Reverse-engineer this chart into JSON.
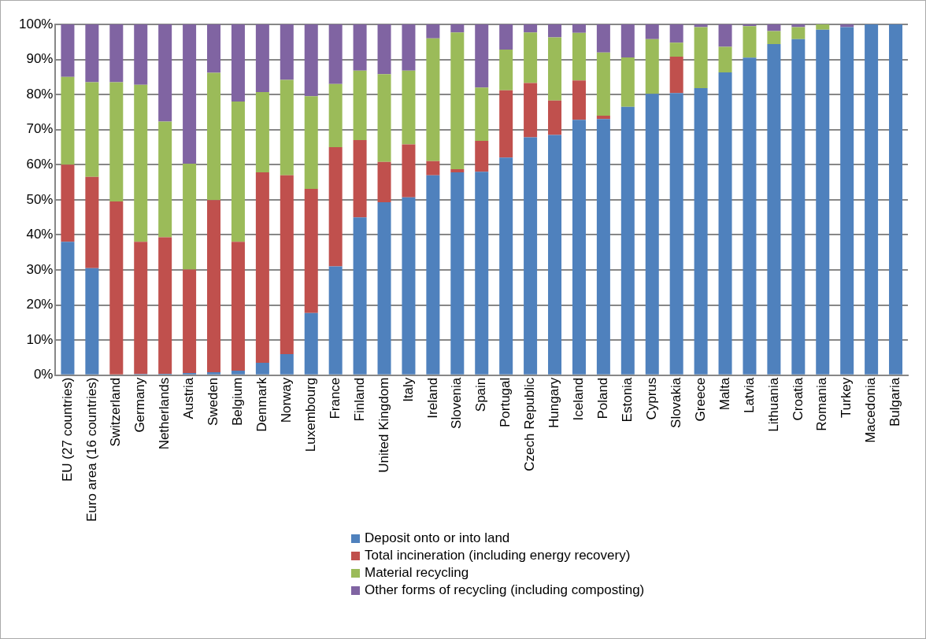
{
  "chart_data": {
    "type": "bar",
    "stacked": true,
    "grid": "y",
    "legend": "bottom",
    "categories": [
      "EU (27 countries)",
      "Euro area (16 countries)",
      "Switzerland",
      "Germany",
      "Netherlands",
      "Austria",
      "Sweden",
      "Belgium",
      "Denmark",
      "Norway",
      "Luxembourg",
      "France",
      "Finland",
      "United Kingdom",
      "Italy",
      "Ireland",
      "Slovenia",
      "Spain",
      "Portugal",
      "Czech Republic",
      "Hungary",
      "Iceland",
      "Poland",
      "Estonia",
      "Cyprus",
      "Slovakia",
      "Greece",
      "Malta",
      "Latvia",
      "Lithuania",
      "Croatia",
      "Romania",
      "Turkey",
      "Macedonia",
      "Bulgaria"
    ],
    "ylim": [
      0,
      100
    ],
    "yticks": [
      {
        "value": 0,
        "label": "0%"
      },
      {
        "value": 10,
        "label": "10%"
      },
      {
        "value": 20,
        "label": "20%"
      },
      {
        "value": 30,
        "label": "30%"
      },
      {
        "value": 40,
        "label": "40%"
      },
      {
        "value": 50,
        "label": "50%"
      },
      {
        "value": 60,
        "label": "60%"
      },
      {
        "value": 70,
        "label": "70%"
      },
      {
        "value": 80,
        "label": "80%"
      },
      {
        "value": 90,
        "label": "90%"
      },
      {
        "value": 100,
        "label": "100%"
      }
    ],
    "series": [
      {
        "name": "Deposit onto or into land",
        "color": "#4f81bd",
        "values": [
          38,
          30.5,
          0,
          0.3,
          0.4,
          0.6,
          0.8,
          1.3,
          3.5,
          6,
          17.7,
          31,
          45,
          49.3,
          50.7,
          57,
          57.8,
          58,
          62,
          67.8,
          68.5,
          72.8,
          73,
          76.5,
          80.2,
          80.4,
          81.8,
          86.3,
          90.5,
          94.4,
          95.8,
          98.5,
          99.2,
          100,
          100
        ]
      },
      {
        "name": "Total incineration (including energy recovery)",
        "color": "#c0504d",
        "values": [
          22,
          26,
          49.5,
          37.7,
          38.9,
          29.5,
          49.1,
          36.7,
          54.3,
          51,
          35.4,
          34,
          22,
          11.5,
          15.1,
          4,
          0.9,
          8.8,
          19.2,
          15.5,
          9.8,
          11.2,
          1,
          0,
          0,
          10.4,
          0,
          0,
          0,
          0,
          0,
          0,
          0,
          0,
          0
        ]
      },
      {
        "name": "Material recycling",
        "color": "#9bbb59",
        "values": [
          25,
          27,
          34,
          44.8,
          33,
          30.2,
          36.3,
          40,
          22.9,
          27.2,
          26.4,
          18,
          19.8,
          25,
          21,
          35,
          39,
          15.2,
          11.6,
          14.4,
          18,
          13.6,
          18,
          14.1,
          15.6,
          4,
          17.4,
          7.3,
          9,
          3.7,
          3.4,
          1.5,
          0,
          0,
          0
        ]
      },
      {
        "name": "Other forms of recycling (including composting)",
        "color": "#8064a2",
        "values": [
          15,
          16.5,
          16.5,
          17.2,
          27.7,
          39.7,
          13.8,
          22,
          19.3,
          15.8,
          20.5,
          17,
          13.2,
          14.2,
          13.2,
          4,
          2.3,
          18,
          7.2,
          2.3,
          3.7,
          2.4,
          8,
          9.4,
          4.2,
          5.2,
          0.8,
          6.4,
          0.5,
          1.9,
          0.8,
          0,
          0.8,
          0,
          0
        ]
      }
    ]
  }
}
